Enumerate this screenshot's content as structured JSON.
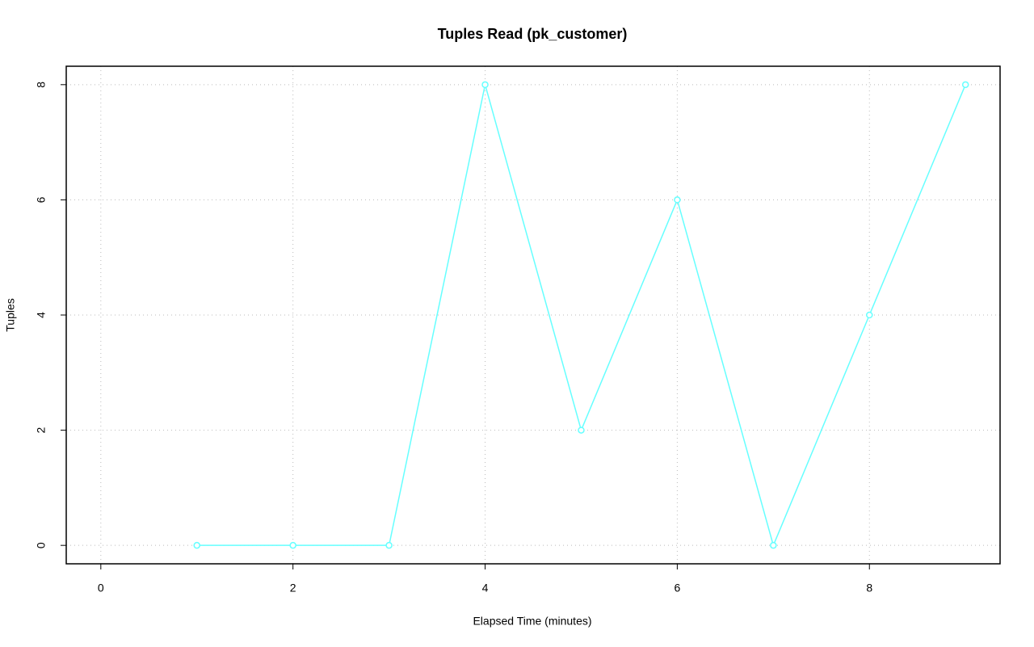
{
  "chart_data": {
    "type": "line",
    "title": "Tuples Read (pk_customer)",
    "x_label": "Elapsed Time (minutes)",
    "y_label": "Tuples",
    "x": [
      1,
      2,
      3,
      4,
      5,
      6,
      7,
      8,
      9
    ],
    "values": [
      0,
      0,
      0,
      8,
      2,
      6,
      0,
      4,
      8
    ],
    "color": "#66ffff",
    "xlim": [
      -0.36,
      9.36
    ],
    "ylim": [
      -0.32,
      8.32
    ],
    "xticks": [
      0,
      2,
      4,
      6,
      8
    ],
    "yticks": [
      0,
      2,
      4,
      6,
      8
    ],
    "grid": true
  }
}
